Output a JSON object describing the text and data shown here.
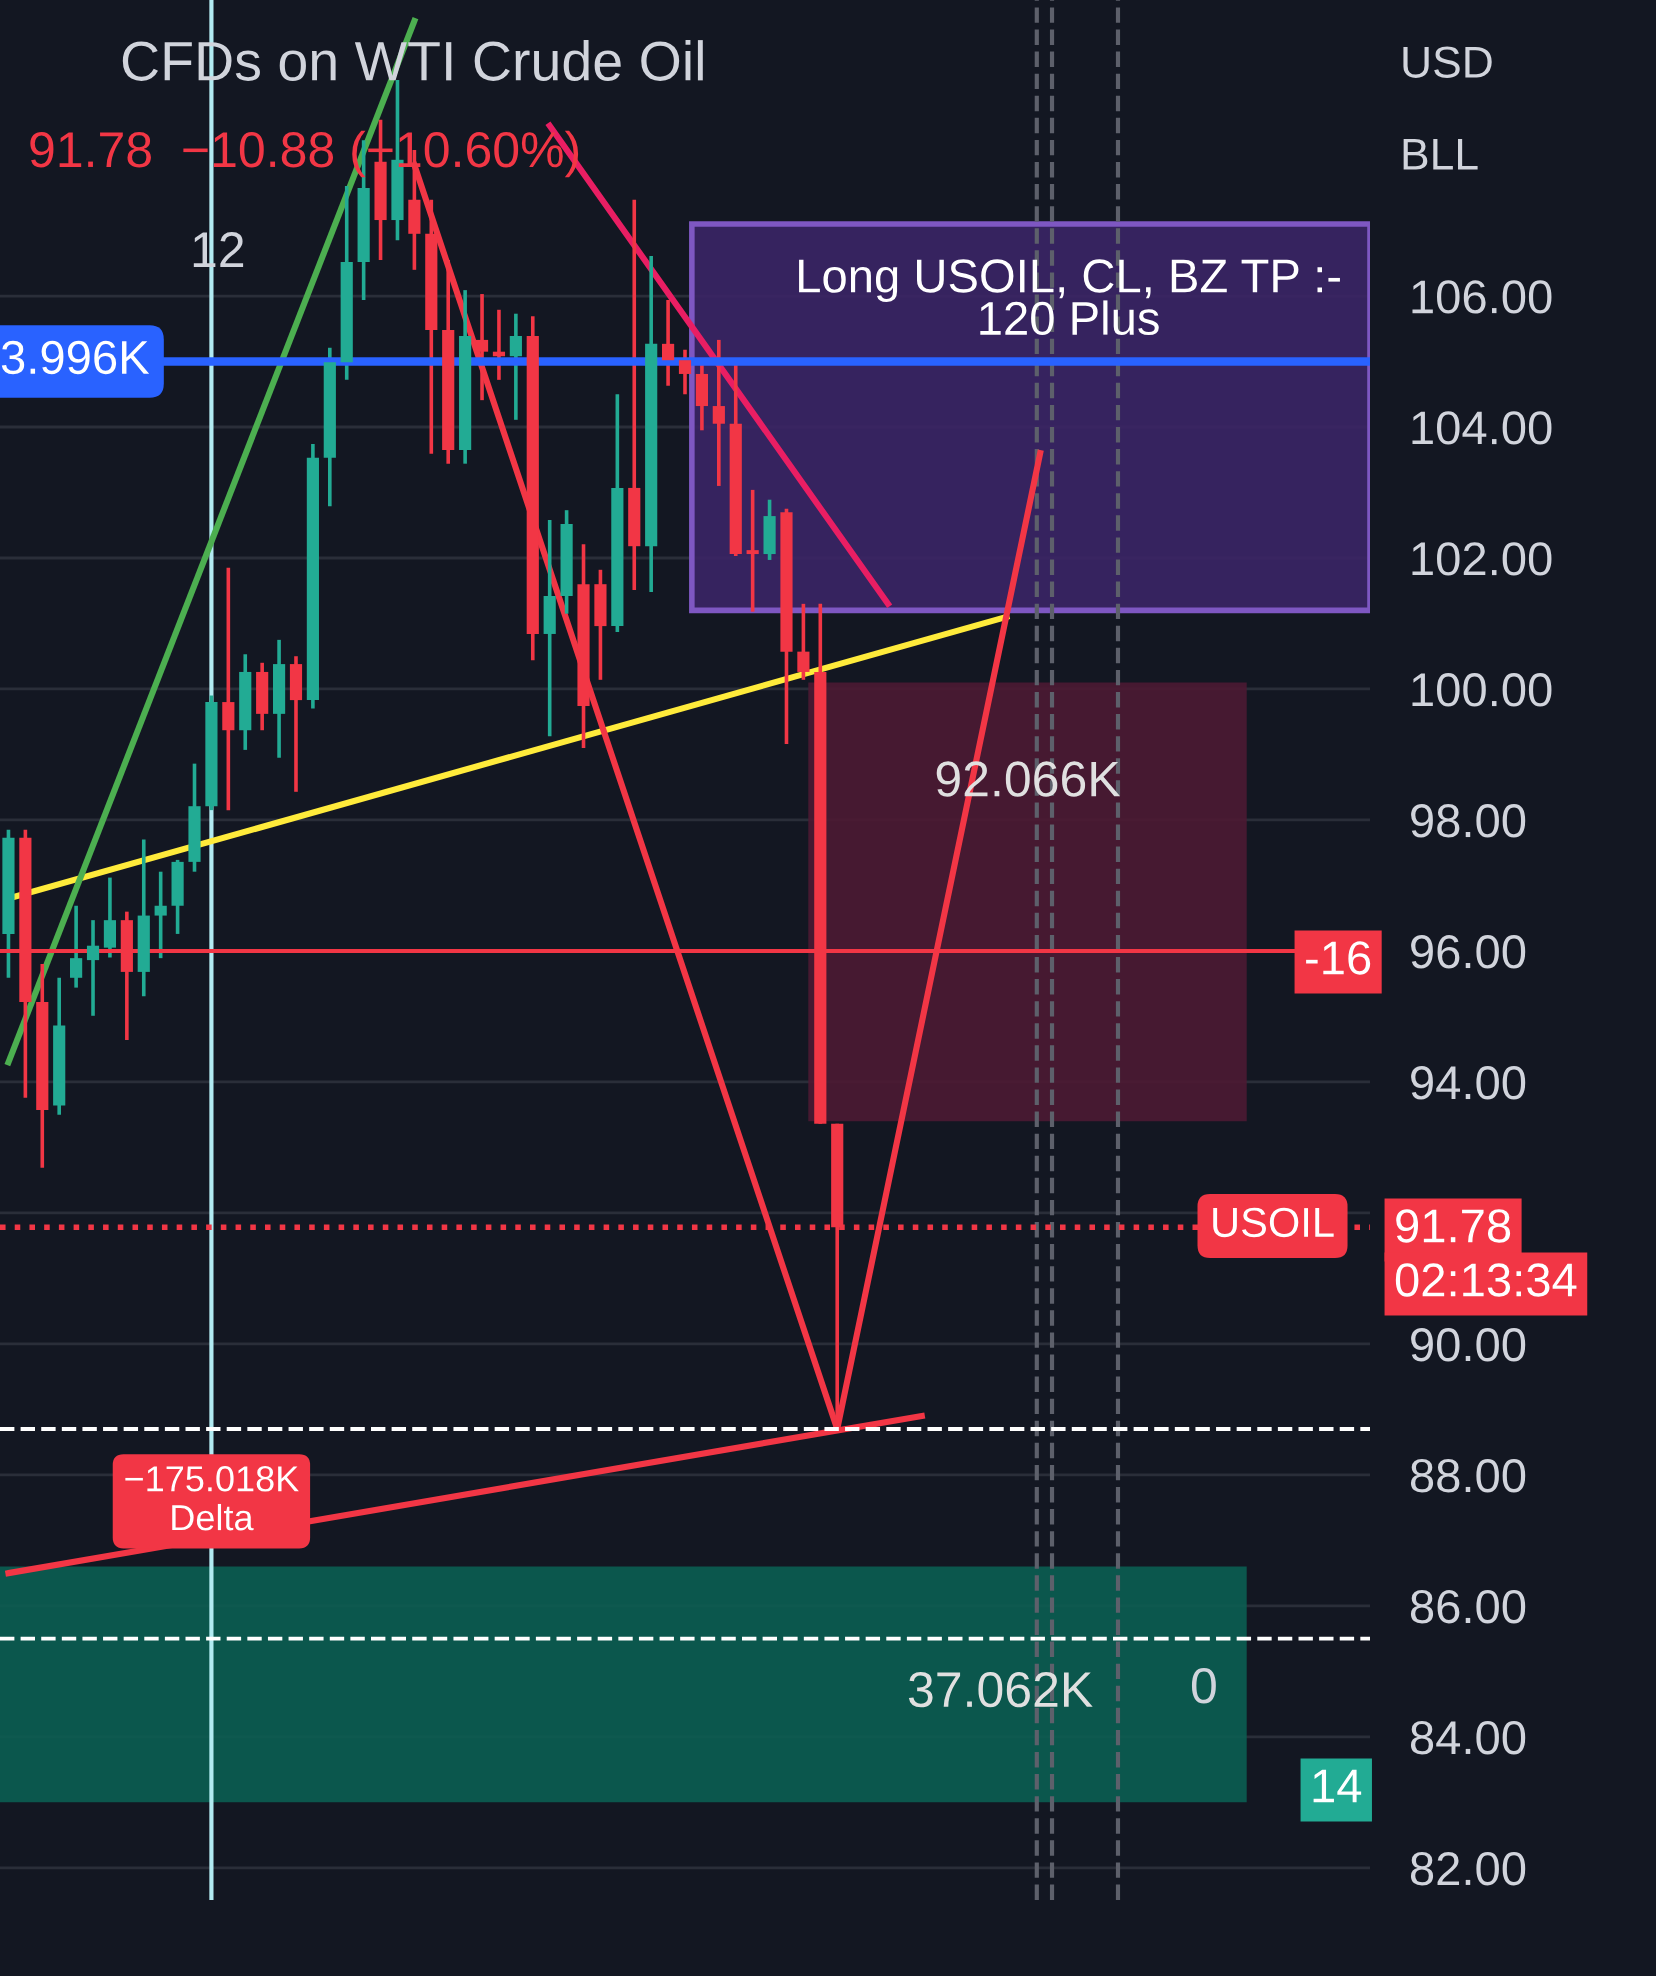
{
  "chart_data": {
    "type": "candlestick",
    "title": "CFDs on WTI Crude Oil",
    "subtitle": "91.78  −10.88 (−10.60%)",
    "categories": [
      null,
      null,
      null,
      null,
      null,
      null,
      null,
      null,
      null,
      null,
      null,
      null,
      null,
      null,
      null,
      null,
      null,
      null,
      null,
      null,
      null,
      null,
      null,
      null,
      null,
      null,
      null,
      null,
      null,
      null,
      null,
      null,
      null,
      null,
      null,
      null,
      null,
      null,
      null,
      null,
      null,
      null,
      null,
      null,
      null,
      null,
      null,
      null,
      null,
      null,
      null,
      null,
      null,
      null,
      null,
      null,
      null,
      null,
      null,
      null,
      null,
      null,
      null,
      null,
      null,
      null,
      null,
      null,
      null,
      null,
      null,
      null,
      null,
      null,
      null,
      null,
      null,
      null,
      null,
      null,
      null
    ],
    "ohlc": [
      [
        96.26,
        97.85,
        95.59,
        97.73
      ],
      [
        97.73,
        97.85,
        93.76,
        95.22
      ],
      [
        95.22,
        95.8,
        92.69,
        93.57
      ],
      [
        93.64,
        95.59,
        93.5,
        94.86
      ],
      [
        95.59,
        96.69,
        95.44,
        95.89
      ],
      [
        95.86,
        96.47,
        95.01,
        96.08
      ],
      [
        96.05,
        97.12,
        95.9,
        96.47
      ],
      [
        96.47,
        96.6,
        94.64,
        95.68
      ],
      [
        95.68,
        97.7,
        95.31,
        96.54
      ],
      [
        96.54,
        97.21,
        95.89,
        96.69
      ],
      [
        96.69,
        97.39,
        96.26,
        97.36
      ],
      [
        97.36,
        98.86,
        97.21,
        98.21
      ],
      [
        98.21,
        99.9,
        98.15,
        99.8
      ],
      [
        99.8,
        101.85,
        98.15,
        99.37
      ],
      [
        99.37,
        100.53,
        99.07,
        100.26
      ],
      [
        100.26,
        100.4,
        99.37,
        99.62
      ],
      [
        99.62,
        100.75,
        98.95,
        100.38
      ],
      [
        100.38,
        100.5,
        98.43,
        99.83
      ],
      [
        99.83,
        103.74,
        99.7,
        103.53
      ],
      [
        103.53,
        105.21,
        102.79,
        104.99
      ],
      [
        104.99,
        107.68,
        104.72,
        106.52
      ],
      [
        106.52,
        108.38,
        105.94,
        107.65
      ],
      [
        108.05,
        108.69,
        106.55,
        107.16
      ],
      [
        107.16,
        109.3,
        106.85,
        108.08
      ],
      [
        107.47,
        108.23,
        106.4,
        106.95
      ],
      [
        106.95,
        107.47,
        103.59,
        105.48
      ],
      [
        105.48,
        106.55,
        103.44,
        103.65
      ],
      [
        103.65,
        106.09,
        103.44,
        105.39
      ],
      [
        105.33,
        106.03,
        104.41,
        105.15
      ],
      [
        105.15,
        105.79,
        104.72,
        105.08
      ],
      [
        105.08,
        105.73,
        104.11,
        105.39
      ],
      [
        105.39,
        105.69,
        100.44,
        100.84
      ],
      [
        100.84,
        102.58,
        99.28,
        101.42
      ],
      [
        101.42,
        102.73,
        101.15,
        102.52
      ],
      [
        101.6,
        102.21,
        99.1,
        99.74
      ],
      [
        101.6,
        101.82,
        100.14,
        100.96
      ],
      [
        100.96,
        104.5,
        100.87,
        103.07
      ],
      [
        103.07,
        107.47,
        101.51,
        102.18
      ],
      [
        102.18,
        106.61,
        101.48,
        105.27
      ],
      [
        105.27,
        105.94,
        104.63,
        105.02
      ],
      [
        105.02,
        105.18,
        104.5,
        104.81
      ],
      [
        104.81,
        105.02,
        103.95,
        104.32
      ],
      [
        104.32,
        105.33,
        103.1,
        104.05
      ],
      [
        104.05,
        105.02,
        102.03,
        102.06
      ],
      [
        102.12,
        103.04,
        101.18,
        102.06
      ],
      [
        102.06,
        102.89,
        101.97,
        102.64
      ],
      [
        102.7,
        102.75,
        99.16,
        100.57
      ],
      [
        100.57,
        101.3,
        100.14,
        100.26
      ],
      [
        100.26,
        101.3,
        93.36,
        93.36
      ],
      [
        93.36,
        93.36,
        88.66,
        91.78
      ],
      null,
      null,
      null,
      null,
      null,
      null,
      null,
      null,
      null,
      null,
      null,
      null,
      null,
      null,
      null,
      null,
      null,
      null,
      null,
      null,
      null,
      null,
      null,
      null,
      null,
      null,
      null,
      null,
      null,
      null,
      null
    ],
    "series": [
      {
        "type": "line",
        "color": "#ffeb3b",
        "values": [
          96.8,
          null,
          null,
          null,
          null,
          null,
          null,
          null,
          null,
          null,
          null,
          null,
          null,
          null,
          null,
          null,
          null,
          null,
          null,
          null,
          null,
          null,
          null,
          null,
          null,
          null,
          null,
          null,
          null,
          null,
          null,
          null,
          null,
          null,
          null,
          null,
          null,
          null,
          null,
          null,
          null,
          null,
          null,
          null,
          null,
          null,
          null,
          null,
          null,
          null,
          null,
          null,
          null,
          null,
          null,
          null,
          null,
          null,
          null,
          101.1,
          null,
          null,
          null,
          null,
          null,
          null,
          null,
          null,
          null,
          null,
          null,
          null,
          null,
          null,
          null,
          null,
          null,
          null,
          null,
          null,
          null
        ]
      },
      {
        "type": "line",
        "color": "#4caf50",
        "values": [
          94.3,
          null,
          null,
          null,
          null,
          null,
          null,
          null,
          null,
          null,
          null,
          null,
          null,
          null,
          null,
          null,
          null,
          null,
          null,
          null,
          null,
          null,
          null,
          null,
          110.2,
          null,
          null,
          null,
          null,
          null,
          null,
          null,
          null,
          null,
          null,
          null,
          null,
          null,
          null,
          null,
          null,
          null,
          null,
          null,
          null,
          null,
          null,
          null,
          null,
          null,
          null,
          null,
          null,
          null,
          null,
          null,
          null,
          null,
          null,
          null,
          null,
          null,
          null,
          null,
          null,
          null,
          null,
          null,
          null,
          null,
          null,
          null,
          null,
          null,
          null,
          null,
          null,
          null,
          null,
          null,
          null
        ]
      },
      {
        "type": "line",
        "color": "#f23645",
        "values": [
          null,
          null,
          null,
          null,
          null,
          null,
          null,
          null,
          null,
          null,
          null,
          null,
          null,
          null,
          null,
          null,
          null,
          null,
          null,
          null,
          null,
          null,
          null,
          null,
          108.0,
          null,
          null,
          null,
          null,
          null,
          null,
          null,
          null,
          null,
          null,
          null,
          null,
          null,
          null,
          null,
          null,
          null,
          null,
          null,
          null,
          null,
          null,
          null,
          null,
          88.7,
          null,
          null,
          null,
          null,
          null,
          null,
          null,
          null,
          null,
          null,
          null,
          103.6,
          null,
          null,
          null,
          null,
          null,
          null,
          null,
          null,
          null,
          null,
          null,
          null,
          null,
          null,
          null,
          null,
          null,
          null,
          null
        ]
      },
      {
        "type": "line",
        "color": "#e91e63",
        "values": [
          null,
          null,
          null,
          null,
          null,
          null,
          null,
          null,
          null,
          null,
          null,
          null,
          null,
          null,
          null,
          null,
          null,
          null,
          null,
          null,
          null,
          null,
          null,
          null,
          null,
          null,
          null,
          null,
          null,
          null,
          null,
          null,
          108.6,
          null,
          null,
          null,
          null,
          null,
          null,
          null,
          null,
          null,
          null,
          null,
          null,
          null,
          null,
          null,
          null,
          null,
          null,
          null,
          101.3,
          null,
          null,
          null,
          null,
          null,
          null,
          null,
          null,
          null,
          null,
          null,
          null,
          null,
          null,
          null,
          null,
          null,
          null,
          null,
          null,
          null,
          null,
          null,
          null,
          null,
          null,
          null,
          null
        ]
      },
      {
        "type": "line",
        "color": "#f23645",
        "values": [
          86.5,
          null,
          null,
          null,
          null,
          null,
          null,
          null,
          null,
          null,
          null,
          null,
          null,
          null,
          null,
          null,
          null,
          null,
          null,
          null,
          null,
          null,
          null,
          null,
          null,
          null,
          null,
          null,
          null,
          null,
          null,
          null,
          null,
          null,
          null,
          null,
          null,
          null,
          null,
          null,
          null,
          null,
          null,
          null,
          null,
          null,
          null,
          null,
          null,
          null,
          null,
          null,
          null,
          null,
          88.9,
          null,
          null,
          null,
          null,
          null,
          null,
          null,
          null,
          null,
          null,
          null,
          null,
          null,
          null,
          null,
          null,
          null,
          null,
          null,
          null,
          null,
          null,
          null,
          null,
          null,
          null
        ]
      }
    ],
    "ref_lines": [
      {
        "axis": "y",
        "value": 91.78,
        "label": "USOIL",
        "color": "#f23645",
        "line_style": "dotted"
      },
      {
        "axis": "y",
        "value": 105.0,
        "label": "3.996K",
        "color": "#2962ff",
        "line_style": "solid"
      },
      {
        "axis": "y",
        "value": 88.7,
        "label": "−175.018K\nDelta",
        "color": "#ffffff",
        "line_style": "dashed"
      },
      {
        "axis": "y",
        "value": 96.0,
        "color": "#f23645",
        "line_style": "solid"
      },
      {
        "axis": "y",
        "value": 85.5,
        "color": "#ffffff",
        "line_style": "dashed"
      }
    ],
    "bands": [
      {
        "axis": "y",
        "from": 101.2,
        "to": 107.1,
        "label": "Long USOIL, CL, BZ TP :-\n120 Plus",
        "color": "#3b2566"
      },
      {
        "axis": "y",
        "from": 93.4,
        "to": 100.1,
        "label": "92.066K",
        "color": "#4d1a33"
      },
      {
        "axis": "y",
        "from": 83.0,
        "to": 86.6,
        "label": "37.062K",
        "color": "#0b5e52"
      }
    ],
    "annotations": [
      "12",
      "USD",
      "BLL",
      "91.78",
      "02:13:34",
      "0",
      "14",
      "-16"
    ],
    "ylim": [
      81.51,
      110.52
    ],
    "yticks": [
      {
        "value": 82,
        "label": "82.00"
      },
      {
        "value": 84,
        "label": "84.00"
      },
      {
        "value": 86,
        "label": "86.00"
      },
      {
        "value": 88,
        "label": "88.00"
      },
      {
        "value": 90,
        "label": "90.00"
      },
      {
        "value": 92,
        "label": null
      },
      {
        "value": 94,
        "label": "94.00"
      },
      {
        "value": 96,
        "label": "96.00"
      },
      {
        "value": 98,
        "label": "98.00"
      },
      {
        "value": 100,
        "label": "100.00"
      },
      {
        "value": 102,
        "label": "102.00"
      },
      {
        "value": 104,
        "label": "104.00"
      },
      {
        "value": 106,
        "label": "106.00"
      }
    ],
    "tick_labels": "y",
    "grid": true
  }
}
